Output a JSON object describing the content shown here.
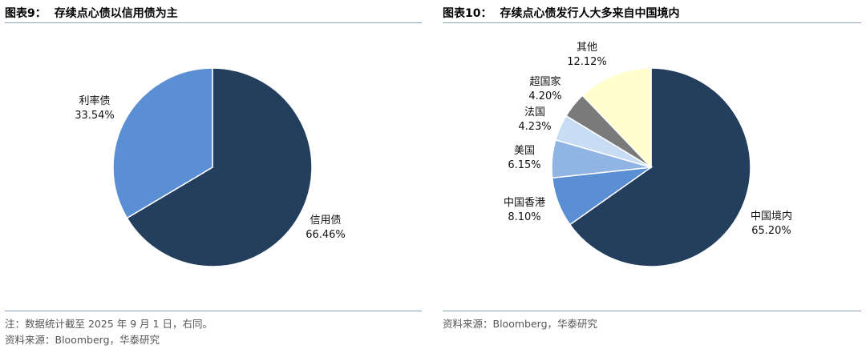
{
  "left": {
    "title_num": "图表9：",
    "title_text": "存续点心债以信用债为主",
    "note": "注：数据统计截至 2025 年 9 月 1 日，右同。",
    "source": "资料来源：Bloomberg，华泰研究"
  },
  "right": {
    "title_num": "图表10：",
    "title_text": "存续点心债发行人大多来自中国境内",
    "source": "资料来源：Bloomberg，华泰研究"
  },
  "chart_data": [
    {
      "type": "pie",
      "title": "存续点心债以信用债为主",
      "start_angle_deg": 0,
      "direction": "clockwise",
      "slices": [
        {
          "label": "信用债",
          "value": 66.46,
          "display": "66.46%",
          "color": "#243f5e"
        },
        {
          "label": "利率债",
          "value": 33.54,
          "display": "33.54%",
          "color": "#5b8fd4"
        }
      ]
    },
    {
      "type": "pie",
      "title": "存续点心债发行人大多来自中国境内",
      "start_angle_deg": 0,
      "direction": "clockwise",
      "slices": [
        {
          "label": "中国境内",
          "value": 65.2,
          "display": "65.20%",
          "color": "#243f5e"
        },
        {
          "label": "中国香港",
          "value": 8.1,
          "display": "8.10%",
          "color": "#5b8fd4"
        },
        {
          "label": "美国",
          "value": 6.15,
          "display": "6.15%",
          "color": "#90b5e3"
        },
        {
          "label": "法国",
          "value": 4.23,
          "display": "4.23%",
          "color": "#c8dcf3"
        },
        {
          "label": "超国家",
          "value": 4.2,
          "display": "4.20%",
          "color": "#7a7a7a"
        },
        {
          "label": "其他",
          "value": 12.12,
          "display": "12.12%",
          "color": "#fffecc"
        }
      ]
    }
  ]
}
